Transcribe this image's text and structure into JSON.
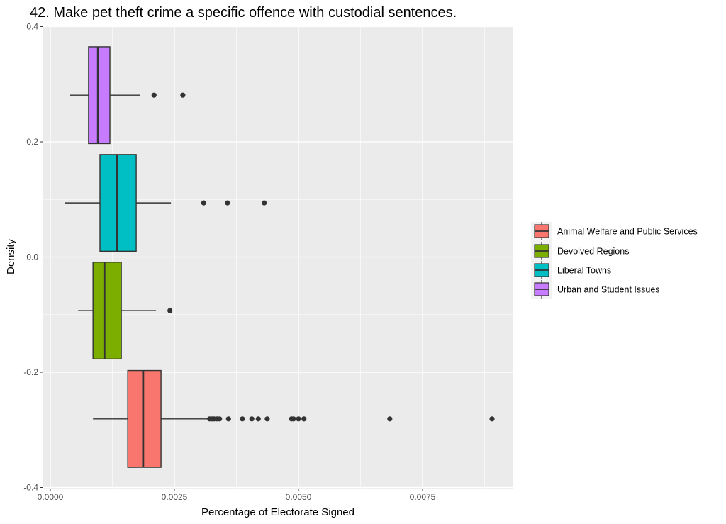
{
  "chart_data": {
    "type": "boxplot",
    "orientation": "horizontal",
    "title": "42. Make pet theft crime a specific offence with custodial sentences.",
    "xlabel": "Percentage of Electorate Signed",
    "ylabel": "Density",
    "xlim": [
      -0.00015,
      0.0093
    ],
    "ylim": [
      -0.4,
      0.4
    ],
    "x_ticks": [
      0,
      0.0025,
      0.005,
      0.0075
    ],
    "x_tick_labels": [
      "0.0000",
      "0.0025",
      "0.0050",
      "0.0075"
    ],
    "y_ticks": [
      0.4,
      0.2,
      0.0,
      -0.2,
      -0.4
    ],
    "y_tick_labels": [
      "0.4",
      "0.2",
      "0.0",
      "-0.2",
      "-0.4"
    ],
    "grid": true,
    "legend_position": "right",
    "series": [
      {
        "name": "Animal Welfare and Public Services",
        "color": "#F8766D",
        "y_center": -0.281,
        "box_half_height": 0.084,
        "whisker_low": 0.00086,
        "q1": 0.00156,
        "median": 0.00187,
        "q3": 0.00223,
        "whisker_high": 0.00317,
        "outliers": [
          0.00321,
          0.00326,
          0.0033,
          0.00336,
          0.00341,
          0.00359,
          0.00387,
          0.00406,
          0.00419,
          0.00437,
          0.00486,
          0.0049,
          0.005,
          0.00511,
          0.00684,
          0.0089
        ]
      },
      {
        "name": "Devolved Regions",
        "color": "#7CAE00",
        "y_center": -0.093,
        "box_half_height": 0.084,
        "whisker_low": 0.00056,
        "q1": 0.00086,
        "median": 0.00109,
        "q3": 0.00143,
        "whisker_high": 0.00213,
        "outliers": [
          0.00241
        ]
      },
      {
        "name": "Liberal Towns",
        "color": "#00BFC4",
        "y_center": 0.094,
        "box_half_height": 0.084,
        "whisker_low": 0.00029,
        "q1": 0.001,
        "median": 0.00134,
        "q3": 0.00173,
        "whisker_high": 0.00243,
        "outliers": [
          0.00309,
          0.00357,
          0.00431
        ]
      },
      {
        "name": "Urban and Student Issues",
        "color": "#C77CFF",
        "y_center": 0.281,
        "box_half_height": 0.084,
        "whisker_low": 0.0004,
        "q1": 0.00077,
        "median": 0.00096,
        "q3": 0.0012,
        "whisker_high": 0.00181,
        "outliers": [
          0.00209,
          0.00267
        ]
      }
    ]
  }
}
